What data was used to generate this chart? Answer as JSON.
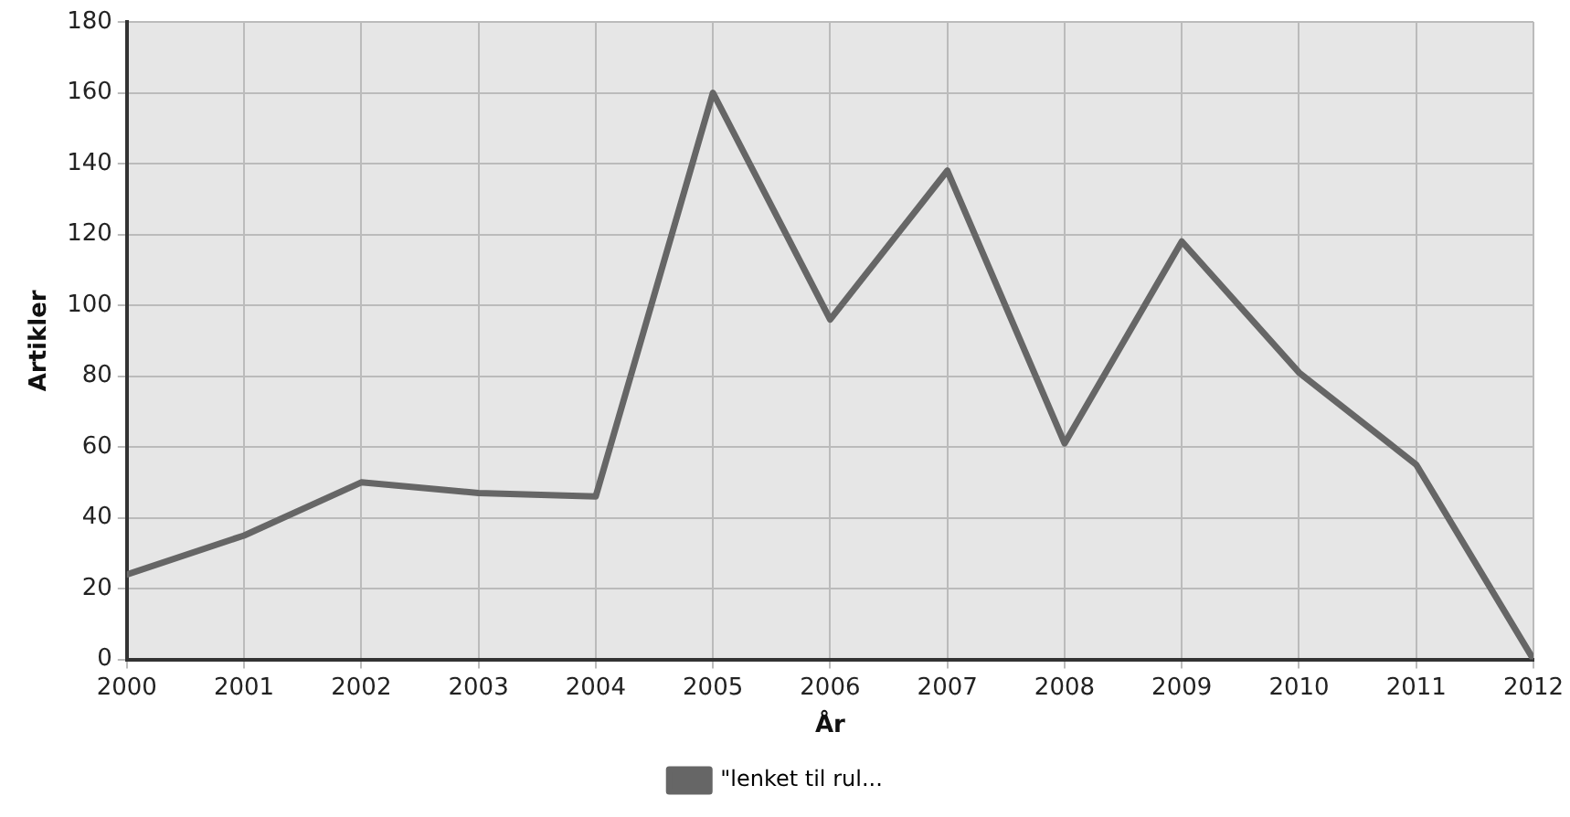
{
  "chart_data": {
    "type": "line",
    "xlabel": "År",
    "ylabel": "Artikler",
    "x": [
      2000,
      2001,
      2002,
      2003,
      2004,
      2005,
      2006,
      2007,
      2008,
      2009,
      2010,
      2011,
      2012
    ],
    "series": [
      {
        "name": "\"lenket til rul...",
        "color": "#666666",
        "values": [
          24,
          35,
          50,
          47,
          46,
          160,
          96,
          138,
          61,
          118,
          81,
          55,
          0
        ]
      }
    ],
    "xlim": [
      2000,
      2012
    ],
    "xticks": [
      2000,
      2001,
      2002,
      2003,
      2004,
      2005,
      2006,
      2007,
      2008,
      2009,
      2010,
      2011,
      2012
    ],
    "ylim": [
      0,
      180
    ],
    "yticks": [
      0,
      20,
      40,
      60,
      80,
      100,
      120,
      140,
      160,
      180
    ],
    "grid": true,
    "legend": "bottom",
    "marker": "none",
    "line_style": "solid"
  }
}
